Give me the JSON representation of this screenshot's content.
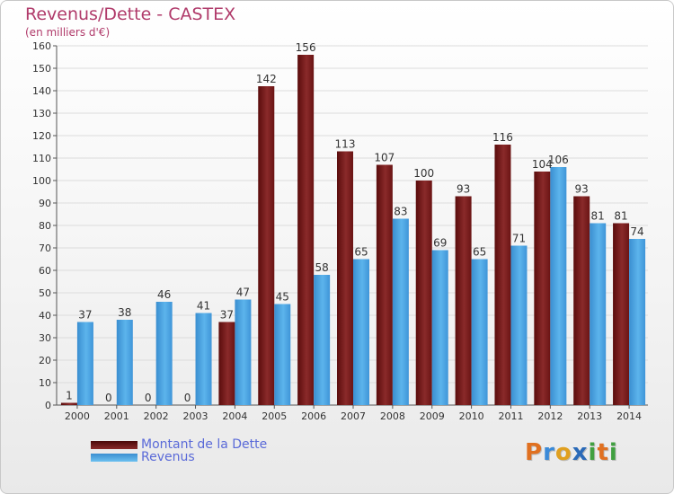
{
  "title": "Revenus/Dette - CASTEX",
  "subtitle": "(en milliers d'€)",
  "logo_text": "Proxiti",
  "colors": {
    "dette": "#7a1a1a",
    "revenus": "#4aa3e0",
    "logo_p": "#e07020",
    "logo_r": "#3a8ad8",
    "logo_o": "#e0a020",
    "logo_x": "#2a6ab8",
    "logo_i": "#40a040"
  },
  "chart_data": {
    "type": "bar",
    "categories": [
      "2000",
      "2001",
      "2002",
      "2003",
      "2004",
      "2005",
      "2006",
      "2007",
      "2008",
      "2009",
      "2010",
      "2011",
      "2012",
      "2013",
      "2014"
    ],
    "series": [
      {
        "name": "Montant de la Dette",
        "values": [
          1,
          0,
          0,
          0,
          37,
          142,
          156,
          113,
          107,
          100,
          93,
          116,
          104,
          93,
          81
        ]
      },
      {
        "name": "Revenus",
        "values": [
          37,
          38,
          46,
          41,
          47,
          45,
          58,
          65,
          83,
          69,
          65,
          71,
          106,
          81,
          74
        ]
      }
    ],
    "ylim": [
      0,
      160
    ],
    "yticks": [
      0,
      10,
      20,
      30,
      40,
      50,
      60,
      70,
      80,
      90,
      100,
      110,
      120,
      130,
      140,
      150,
      160
    ],
    "grid": true,
    "legend": "bottom-left"
  }
}
